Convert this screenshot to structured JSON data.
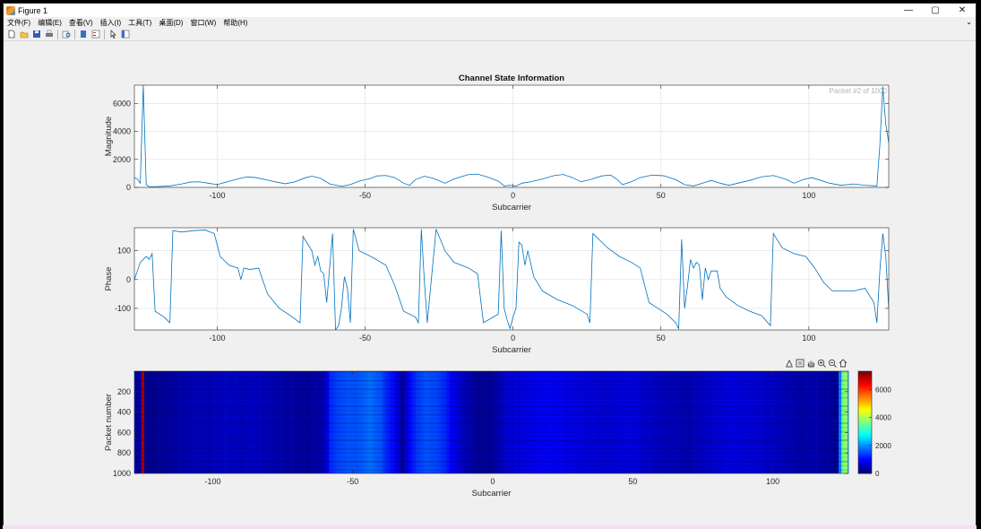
{
  "window": {
    "title": "Figure 1",
    "controls": {
      "minimize": "—",
      "maximize": "▢",
      "close": "✕"
    }
  },
  "menu": {
    "items": [
      "文件(F)",
      "编辑(E)",
      "查看(V)",
      "插入(I)",
      "工具(T)",
      "桌面(D)",
      "窗口(W)",
      "帮助(H)"
    ],
    "overflow": "⌄"
  },
  "toolbar": {
    "buttons": [
      "new-figure-icon",
      "open-file-icon",
      "save-icon",
      "print-icon",
      "print-preview-icon",
      "link-plot-icon",
      "insert-legend-icon",
      "pointer-icon",
      "plot-tools-icon"
    ]
  },
  "axes_toolbar": {
    "buttons": [
      "export-icon",
      "brush-icon",
      "pan-icon",
      "zoom-in-icon",
      "zoom-out-icon",
      "home-icon"
    ]
  },
  "chart_data": [
    {
      "type": "line",
      "title": "Channel State Information",
      "annotation": "Packet #2 of 1000",
      "xlabel": "Subcarrier",
      "ylabel": "Magnitude",
      "xlim": [
        -128,
        127
      ],
      "ylim": [
        0,
        7300
      ],
      "xticks": [
        -100,
        -50,
        0,
        50,
        100
      ],
      "yticks": [
        0,
        2000,
        4000,
        6000
      ],
      "xtick_labels": [
        "-100",
        "-50",
        "0",
        "50",
        "100"
      ],
      "ytick_labels": [
        "0",
        "2000",
        "4000",
        "6000"
      ],
      "grid": true,
      "color": "#0072bd",
      "points": [
        [
          -128,
          700
        ],
        [
          -127,
          600
        ],
        [
          -126,
          300
        ],
        [
          -125,
          7300
        ],
        [
          -124,
          200
        ],
        [
          -123,
          50
        ],
        [
          -120,
          60
        ],
        [
          -116,
          100
        ],
        [
          -112,
          250
        ],
        [
          -109,
          380
        ],
        [
          -106,
          400
        ],
        [
          -103,
          300
        ],
        [
          -100,
          200
        ],
        [
          -97,
          380
        ],
        [
          -94,
          550
        ],
        [
          -90,
          750
        ],
        [
          -87,
          700
        ],
        [
          -83,
          520
        ],
        [
          -80,
          380
        ],
        [
          -77,
          260
        ],
        [
          -74,
          380
        ],
        [
          -70,
          700
        ],
        [
          -68,
          800
        ],
        [
          -65,
          650
        ],
        [
          -62,
          250
        ],
        [
          -58,
          80
        ],
        [
          -55,
          200
        ],
        [
          -52,
          450
        ],
        [
          -48,
          650
        ],
        [
          -46,
          820
        ],
        [
          -43,
          850
        ],
        [
          -40,
          700
        ],
        [
          -37,
          300
        ],
        [
          -35,
          150
        ],
        [
          -33,
          550
        ],
        [
          -30,
          800
        ],
        [
          -27,
          650
        ],
        [
          -23,
          300
        ],
        [
          -20,
          600
        ],
        [
          -15,
          920
        ],
        [
          -12,
          950
        ],
        [
          -8,
          700
        ],
        [
          -5,
          450
        ],
        [
          -3,
          100
        ],
        [
          -1,
          150
        ],
        [
          1,
          80
        ],
        [
          3,
          300
        ],
        [
          6,
          400
        ],
        [
          10,
          600
        ],
        [
          14,
          850
        ],
        [
          17,
          920
        ],
        [
          20,
          700
        ],
        [
          23,
          400
        ],
        [
          26,
          550
        ],
        [
          30,
          820
        ],
        [
          33,
          880
        ],
        [
          35,
          600
        ],
        [
          37,
          200
        ],
        [
          40,
          400
        ],
        [
          43,
          700
        ],
        [
          47,
          880
        ],
        [
          51,
          830
        ],
        [
          55,
          550
        ],
        [
          58,
          200
        ],
        [
          61,
          100
        ],
        [
          64,
          300
        ],
        [
          67,
          500
        ],
        [
          70,
          300
        ],
        [
          73,
          150
        ],
        [
          76,
          300
        ],
        [
          80,
          500
        ],
        [
          84,
          750
        ],
        [
          88,
          850
        ],
        [
          92,
          600
        ],
        [
          95,
          300
        ],
        [
          98,
          550
        ],
        [
          101,
          700
        ],
        [
          104,
          500
        ],
        [
          107,
          300
        ],
        [
          111,
          150
        ],
        [
          115,
          250
        ],
        [
          119,
          150
        ],
        [
          123,
          100
        ],
        [
          124,
          3000
        ],
        [
          125,
          7200
        ],
        [
          126,
          4500
        ],
        [
          127,
          3200
        ]
      ]
    },
    {
      "type": "line",
      "xlabel": "Subcarrier",
      "ylabel": "Phase",
      "xlim": [
        -128,
        127
      ],
      "ylim": [
        -175,
        180
      ],
      "xticks": [
        -100,
        -50,
        0,
        50,
        100
      ],
      "yticks": [
        -100,
        0,
        100
      ],
      "xtick_labels": [
        "-100",
        "-50",
        "0",
        "50",
        "100"
      ],
      "ytick_labels": [
        "-100",
        "0",
        "100"
      ],
      "grid": true,
      "color": "#0072bd",
      "points": [
        [
          -128,
          0
        ],
        [
          -126,
          60
        ],
        [
          -124,
          80
        ],
        [
          -123,
          70
        ],
        [
          -122,
          90
        ],
        [
          -121,
          -110
        ],
        [
          -118,
          -130
        ],
        [
          -116,
          -150
        ],
        [
          -115,
          170
        ],
        [
          -112,
          165
        ],
        [
          -108,
          170
        ],
        [
          -104,
          172
        ],
        [
          -101,
          160
        ],
        [
          -99,
          80
        ],
        [
          -96,
          50
        ],
        [
          -93,
          40
        ],
        [
          -92,
          0
        ],
        [
          -91,
          40
        ],
        [
          -89,
          35
        ],
        [
          -86,
          40
        ],
        [
          -83,
          -50
        ],
        [
          -79,
          -100
        ],
        [
          -76,
          -120
        ],
        [
          -72,
          -150
        ],
        [
          -71,
          150
        ],
        [
          -68,
          100
        ],
        [
          -67,
          50
        ],
        [
          -66,
          80
        ],
        [
          -65,
          30
        ],
        [
          -64,
          20
        ],
        [
          -63,
          -80
        ],
        [
          -61,
          160
        ],
        [
          -60,
          -175
        ],
        [
          -59,
          -160
        ],
        [
          -58,
          -100
        ],
        [
          -57,
          10
        ],
        [
          -56,
          -30
        ],
        [
          -55,
          -150
        ],
        [
          -54,
          175
        ],
        [
          -52,
          100
        ],
        [
          -48,
          80
        ],
        [
          -43,
          50
        ],
        [
          -40,
          -20
        ],
        [
          -37,
          -110
        ],
        [
          -33,
          -130
        ],
        [
          -32,
          -150
        ],
        [
          -31,
          175
        ],
        [
          -30,
          0
        ],
        [
          -29,
          -150
        ],
        [
          -26,
          175
        ],
        [
          -23,
          100
        ],
        [
          -20,
          60
        ],
        [
          -15,
          40
        ],
        [
          -12,
          20
        ],
        [
          -10,
          -150
        ],
        [
          -5,
          -120
        ],
        [
          -4,
          170
        ],
        [
          -3,
          -100
        ],
        [
          -2,
          -140
        ],
        [
          -1,
          -170
        ],
        [
          0,
          -130
        ],
        [
          1,
          -100
        ],
        [
          2,
          130
        ],
        [
          3,
          120
        ],
        [
          4,
          50
        ],
        [
          5,
          100
        ],
        [
          7,
          10
        ],
        [
          10,
          -40
        ],
        [
          15,
          -70
        ],
        [
          20,
          -90
        ],
        [
          25,
          -120
        ],
        [
          26,
          -150
        ],
        [
          27,
          160
        ],
        [
          32,
          110
        ],
        [
          36,
          80
        ],
        [
          40,
          60
        ],
        [
          43,
          40
        ],
        [
          46,
          -80
        ],
        [
          49,
          -100
        ],
        [
          52,
          -120
        ],
        [
          55,
          -150
        ],
        [
          56,
          -170
        ],
        [
          57,
          140
        ],
        [
          58,
          -100
        ],
        [
          59,
          -20
        ],
        [
          60,
          70
        ],
        [
          61,
          40
        ],
        [
          62,
          60
        ],
        [
          63,
          50
        ],
        [
          64,
          -70
        ],
        [
          65,
          40
        ],
        [
          66,
          0
        ],
        [
          67,
          30
        ],
        [
          69,
          30
        ],
        [
          70,
          -30
        ],
        [
          72,
          -60
        ],
        [
          76,
          -90
        ],
        [
          80,
          -110
        ],
        [
          84,
          -125
        ],
        [
          87,
          -160
        ],
        [
          88,
          160
        ],
        [
          91,
          110
        ],
        [
          95,
          90
        ],
        [
          99,
          80
        ],
        [
          102,
          40
        ],
        [
          105,
          -10
        ],
        [
          108,
          -40
        ],
        [
          115,
          -40
        ],
        [
          119,
          -30
        ],
        [
          122,
          -80
        ],
        [
          123,
          -150
        ],
        [
          124,
          30
        ],
        [
          125,
          160
        ],
        [
          126,
          80
        ],
        [
          127,
          -100
        ]
      ]
    },
    {
      "type": "heatmap",
      "xlabel": "Subcarrier",
      "ylabel": "Packet number",
      "xlim": [
        -128,
        127
      ],
      "ylim": [
        0,
        1000
      ],
      "xticks": [
        -100,
        -50,
        0,
        50,
        100
      ],
      "yticks": [
        200,
        400,
        600,
        800,
        1000
      ],
      "xtick_labels": [
        "-100",
        "-50",
        "0",
        "50",
        "100"
      ],
      "ytick_labels": [
        "200",
        "400",
        "600",
        "800",
        "1000"
      ],
      "colormap": "jet",
      "colorbar": {
        "limits": [
          0,
          7300
        ],
        "ticks": [
          0,
          2000,
          4000,
          6000
        ],
        "tick_labels": [
          "0",
          "2000",
          "4000",
          "6000"
        ]
      },
      "column_magnitude": {
        "subcarrier": [
          -128,
          -127,
          -126,
          -125,
          -124,
          -120,
          -115,
          -110,
          -105,
          -100,
          -95,
          -90,
          -85,
          -80,
          -75,
          -70,
          -66,
          -64,
          -62,
          -60,
          -58,
          -55,
          -52,
          -48,
          -44,
          -40,
          -38,
          -35,
          -33,
          -32,
          -30,
          -27,
          -24,
          -20,
          -17,
          -15,
          -12,
          -8,
          -5,
          0,
          5,
          10,
          15,
          20,
          25,
          30,
          35,
          40,
          45,
          50,
          55,
          60,
          65,
          70,
          75,
          80,
          85,
          90,
          95,
          100,
          105,
          110,
          115,
          120,
          123,
          124,
          125,
          126,
          127
        ],
        "magnitude": [
          500,
          200,
          300,
          7000,
          100,
          150,
          250,
          350,
          400,
          420,
          500,
          450,
          500,
          380,
          300,
          250,
          200,
          250,
          300,
          400,
          1200,
          1400,
          1500,
          1500,
          1700,
          1500,
          1200,
          900,
          400,
          200,
          900,
          1300,
          1500,
          1400,
          1200,
          900,
          600,
          300,
          150,
          200,
          600,
          700,
          800,
          850,
          800,
          700,
          650,
          600,
          650,
          700,
          550,
          450,
          400,
          350,
          500,
          600,
          700,
          650,
          600,
          500,
          400,
          300,
          350,
          250,
          150,
          1800,
          3500,
          3900,
          2800
        ]
      }
    }
  ]
}
